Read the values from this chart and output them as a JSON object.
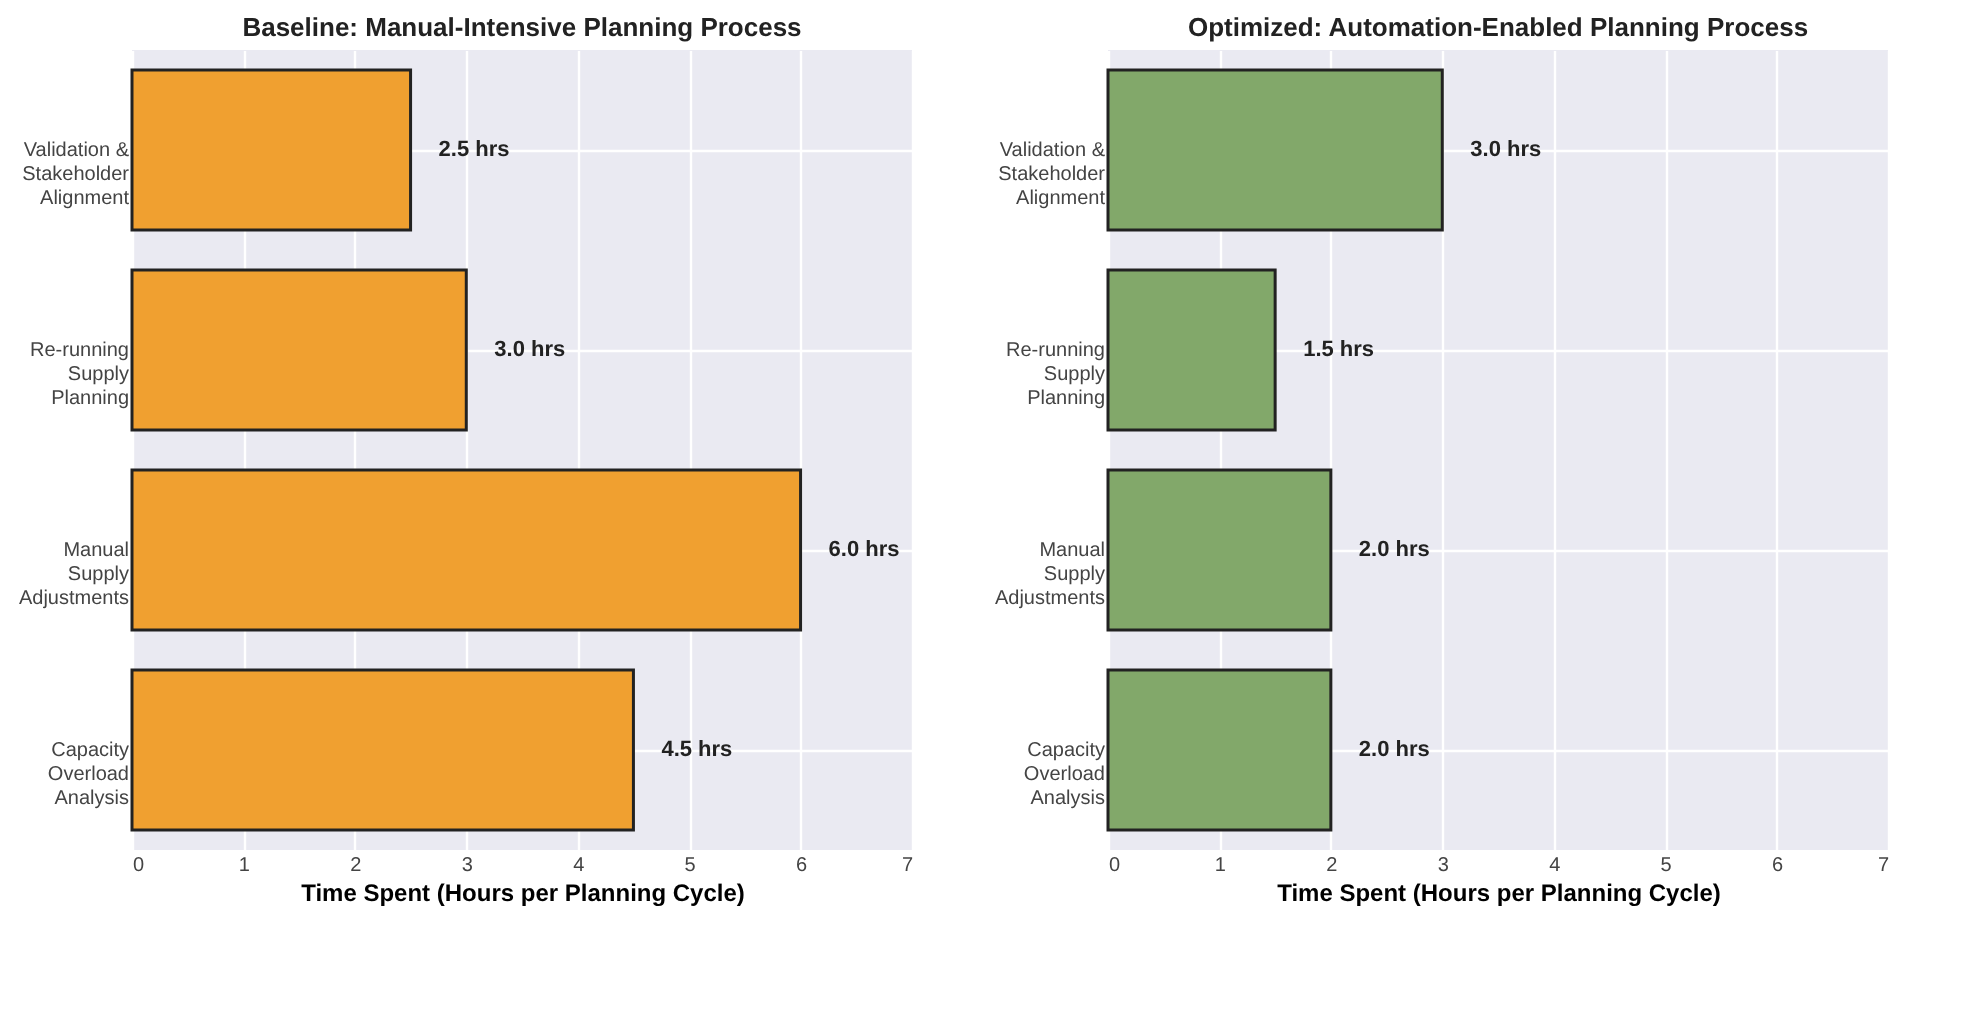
{
  "chart_data": [
    {
      "type": "bar",
      "orientation": "horizontal",
      "title": "Baseline: Manual-Intensive Planning Process",
      "xlabel": "Time Spent (Hours per Planning Cycle)",
      "categories": [
        "Validation & Stakeholder Alignment",
        "Re-running Supply Planning",
        "Manual Supply Adjustments",
        "Capacity Overload Analysis"
      ],
      "values": [
        2.5,
        3.0,
        6.0,
        4.5
      ],
      "color": "#f0a030",
      "value_labels": [
        "2.5 hrs",
        "3.0 hrs",
        "6.0 hrs",
        "4.5 hrs"
      ],
      "xlim": [
        0,
        7
      ],
      "xticks": [
        0,
        1,
        2,
        3,
        4,
        5,
        6,
        7
      ],
      "grid": true
    },
    {
      "type": "bar",
      "orientation": "horizontal",
      "title": "Optimized: Automation-Enabled Planning Process",
      "xlabel": "Time Spent (Hours per Planning Cycle)",
      "categories": [
        "Validation & Stakeholder Alignment",
        "Re-running Supply Planning",
        "Manual Supply Adjustments",
        "Capacity Overload Analysis"
      ],
      "values": [
        3.0,
        1.5,
        2.0,
        2.0
      ],
      "color": "#82a86a",
      "value_labels": [
        "3.0 hrs",
        "1.5 hrs",
        "2.0 hrs",
        "2.0 hrs"
      ],
      "xlim": [
        0,
        7
      ],
      "xticks": [
        0,
        1,
        2,
        3,
        4,
        5,
        6,
        7
      ],
      "grid": true
    }
  ]
}
